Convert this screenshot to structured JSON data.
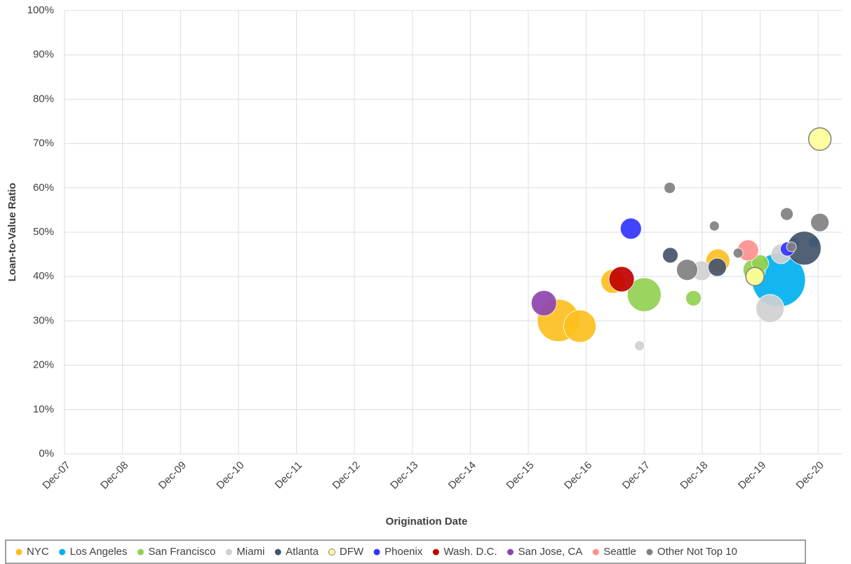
{
  "chart_data": {
    "type": "bubble",
    "xlabel": "Origination Date",
    "ylabel": "Loan-to-Value Ratio",
    "xlim": [
      2007.92,
      2021.33
    ],
    "ylim": [
      0,
      100
    ],
    "xticks": [
      {
        "value": 2007.92,
        "label": "Dec-07"
      },
      {
        "value": 2008.92,
        "label": "Dec-08"
      },
      {
        "value": 2009.92,
        "label": "Dec-09"
      },
      {
        "value": 2010.92,
        "label": "Dec-10"
      },
      {
        "value": 2011.92,
        "label": "Dec-11"
      },
      {
        "value": 2012.92,
        "label": "Dec-12"
      },
      {
        "value": 2013.92,
        "label": "Dec-13"
      },
      {
        "value": 2014.92,
        "label": "Dec-14"
      },
      {
        "value": 2015.92,
        "label": "Dec-15"
      },
      {
        "value": 2016.92,
        "label": "Dec-16"
      },
      {
        "value": 2017.92,
        "label": "Dec-17"
      },
      {
        "value": 2018.92,
        "label": "Dec-18"
      },
      {
        "value": 2019.92,
        "label": "Dec-19"
      },
      {
        "value": 2020.92,
        "label": "Dec-20"
      }
    ],
    "yticks": [
      {
        "value": 0,
        "label": "0%"
      },
      {
        "value": 10,
        "label": "10%"
      },
      {
        "value": 20,
        "label": "20%"
      },
      {
        "value": 30,
        "label": "30%"
      },
      {
        "value": 40,
        "label": "40%"
      },
      {
        "value": 50,
        "label": "50%"
      },
      {
        "value": 60,
        "label": "60%"
      },
      {
        "value": 70,
        "label": "70%"
      },
      {
        "value": 80,
        "label": "80%"
      },
      {
        "value": 90,
        "label": "90%"
      },
      {
        "value": 100,
        "label": "100%"
      }
    ],
    "grid": true,
    "legend": "bottom",
    "series": [
      {
        "name": "NYC",
        "color": "#fcbf1e",
        "x": [
          2016.44,
          2016.81,
          2017.38,
          2019.19
        ],
        "y": [
          30.1,
          28.8,
          38.9,
          43.5
        ],
        "sizes": [
          30,
          23,
          17,
          17
        ]
      },
      {
        "name": "Los Angeles",
        "color": "#00b0f0",
        "x": [
          2020.24,
          2020.51,
          2020.85
        ],
        "y": [
          39.2,
          47.5,
          47.8
        ],
        "sizes": [
          38,
          8,
          8
        ]
      },
      {
        "name": "San Francisco",
        "color": "#92d050",
        "x": [
          2017.92,
          2018.77,
          2019.82,
          2019.92
        ],
        "y": [
          35.9,
          35.1,
          41.5,
          43.0
        ],
        "sizes": [
          24,
          11,
          16,
          12
        ]
      },
      {
        "name": "Miami",
        "color": "#d0d0d0",
        "x": [
          2017.84,
          2018.91,
          2020.09,
          2020.28
        ],
        "y": [
          24.4,
          41.3,
          32.8,
          45.1
        ],
        "sizes": [
          7,
          14,
          20,
          14
        ]
      },
      {
        "name": "Atlanta",
        "color": "#44546a",
        "x": [
          2018.37,
          2019.18,
          2020.68
        ],
        "y": [
          44.8,
          42.1,
          46.4
        ],
        "sizes": [
          11,
          13,
          24
        ]
      },
      {
        "name": "DFW",
        "color": "#ffff99",
        "outline": "#7f7f7f",
        "x": [
          2020.95,
          2019.83
        ],
        "y": [
          71.0,
          40.0
        ],
        "sizes": [
          16,
          13
        ]
      },
      {
        "name": "Phoenix",
        "color": "#3333ff",
        "x": [
          2017.69,
          2020.39
        ],
        "y": [
          50.8,
          46.2
        ],
        "sizes": [
          15,
          10
        ]
      },
      {
        "name": "Wash. D.C.",
        "color": "#c00000",
        "x": [
          2017.53
        ],
        "y": [
          39.4
        ],
        "sizes": [
          18
        ]
      },
      {
        "name": "San Jose, CA",
        "color": "#8e44ad",
        "x": [
          2016.19
        ],
        "y": [
          34.0
        ],
        "sizes": [
          18
        ]
      },
      {
        "name": "Seattle",
        "color": "#ff8f8f",
        "x": [
          2019.71
        ],
        "y": [
          45.9
        ],
        "sizes": [
          15
        ]
      },
      {
        "name": "Other Not Top 10",
        "color": "#808080",
        "x": [
          2018.36,
          2018.66,
          2019.13,
          2019.54,
          2020.38,
          2020.95,
          2020.46
        ],
        "y": [
          60.0,
          41.5,
          51.4,
          45.3,
          54.1,
          52.2,
          46.7
        ],
        "sizes": [
          8,
          15,
          7,
          7,
          9,
          13,
          7
        ]
      }
    ]
  }
}
